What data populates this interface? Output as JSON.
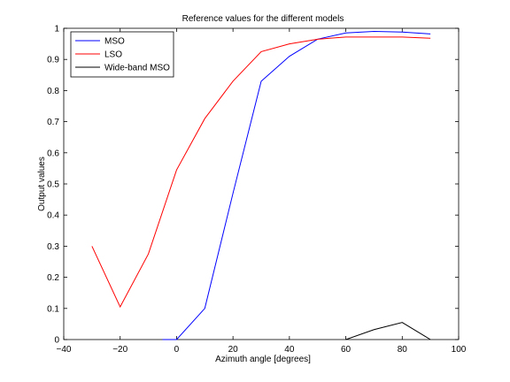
{
  "chart_data": {
    "type": "line",
    "title": "Reference values for the different models",
    "xlabel": "Azimuth angle [degrees]",
    "ylabel": "Output values",
    "xlim": [
      -40,
      100
    ],
    "ylim": [
      0,
      1
    ],
    "xticks": [
      -40,
      -20,
      0,
      20,
      40,
      60,
      80,
      100
    ],
    "xtick_labels": [
      "−40",
      "−20",
      "0",
      "20",
      "40",
      "60",
      "80",
      "100"
    ],
    "yticks": [
      0,
      0.1,
      0.2,
      0.3,
      0.4,
      0.5,
      0.6,
      0.7,
      0.8,
      0.9,
      1
    ],
    "ytick_labels": [
      "0",
      "0.1",
      "0.2",
      "0.3",
      "0.4",
      "0.5",
      "0.6",
      "0.7",
      "0.8",
      "0.9",
      "1"
    ],
    "grid": false,
    "legend_position": "top-left",
    "series": [
      {
        "name": "MSO",
        "color": "#0000ff",
        "x": [
          -5,
          0,
          10,
          20,
          30,
          40,
          50,
          60,
          70,
          80,
          90
        ],
        "y": [
          0,
          0,
          0.1,
          0.47,
          0.83,
          0.91,
          0.965,
          0.985,
          0.99,
          0.988,
          0.982
        ]
      },
      {
        "name": "LSO",
        "color": "#ff0000",
        "x": [
          -30,
          -20,
          -10,
          0,
          10,
          20,
          30,
          40,
          50,
          60,
          70,
          80,
          90
        ],
        "y": [
          0.3,
          0.105,
          0.275,
          0.545,
          0.71,
          0.83,
          0.925,
          0.95,
          0.965,
          0.972,
          0.972,
          0.972,
          0.968
        ]
      },
      {
        "name": "Wide-band MSO",
        "color": "#000000",
        "x": [
          60,
          70,
          80,
          90
        ],
        "y": [
          0,
          0.032,
          0.055,
          0
        ]
      }
    ]
  }
}
